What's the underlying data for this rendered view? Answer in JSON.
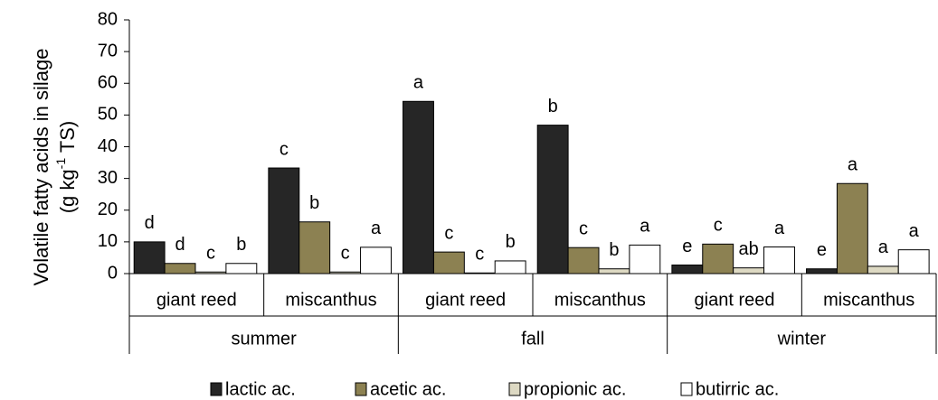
{
  "chart_data": {
    "type": "bar",
    "ylabel": [
      "Volatile fatty acids  in silage",
      "(g kg",
      "-1",
      " TS)"
    ],
    "groups": [
      {
        "name": "summer",
        "categories": [
          "giant reed",
          "miscanthus"
        ]
      },
      {
        "name": "fall",
        "categories": [
          "giant reed",
          "miscanthus"
        ]
      },
      {
        "name": "winter",
        "categories": [
          "giant reed",
          "miscanthus"
        ]
      }
    ],
    "series": [
      {
        "name": "lactic ac.",
        "color": "#262626",
        "values": [
          10,
          33.3,
          54.3,
          46.8,
          2.7,
          1.5
        ],
        "letters": [
          "d",
          "c",
          "a",
          "b",
          "e",
          "e"
        ]
      },
      {
        "name": "acetic ac.",
        "color": "#8c8152",
        "values": [
          3.2,
          16.3,
          6.8,
          8.2,
          9.3,
          28.4
        ],
        "letters": [
          "d",
          "b",
          "c",
          "c",
          "c",
          "a"
        ]
      },
      {
        "name": "propionic ac.",
        "color": "#ddd9c3",
        "values": [
          0.5,
          0.5,
          0.2,
          1.5,
          1.8,
          2.3
        ],
        "letters": [
          "c",
          "c",
          "c",
          "b",
          "ab",
          "a"
        ]
      },
      {
        "name": "butirric ac.",
        "color": "#ffffff",
        "values": [
          3.2,
          8.3,
          4,
          9,
          8.4,
          7.5
        ],
        "letters": [
          "b",
          "a",
          "b",
          "a",
          "a",
          "a"
        ]
      }
    ],
    "ylim": [
      0,
      80
    ],
    "yticks": [
      0,
      10,
      20,
      30,
      40,
      50,
      60,
      70,
      80
    ],
    "grid": false,
    "legend": "bottom"
  }
}
